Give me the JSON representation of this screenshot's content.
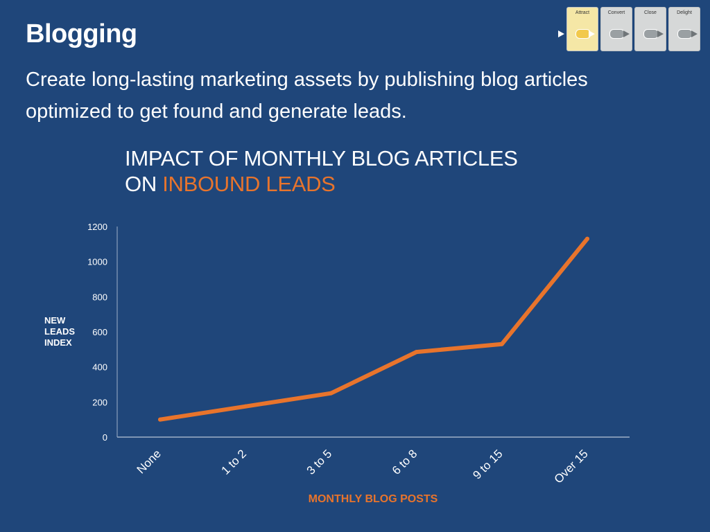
{
  "slide": {
    "title": "Blogging",
    "subtitle": "Create long-lasting marketing assets by publishing blog articles optimized to get found and generate leads."
  },
  "stages": {
    "items": [
      {
        "label": "Attract",
        "active": true
      },
      {
        "label": "Convert",
        "active": false
      },
      {
        "label": "Close",
        "active": false
      },
      {
        "label": "Delight",
        "active": false
      }
    ]
  },
  "chart_data": {
    "type": "line",
    "title_part1": "IMPACT OF MONTHLY BLOG ARTICLES",
    "title_part2_prefix": "ON ",
    "title_part2_highlight": "INBOUND LEADS",
    "xlabel": "MONTHLY BLOG POSTS",
    "ylabel": "NEW LEADS INDEX",
    "categories": [
      "None",
      "1 to 2",
      "3 to 5",
      "6 to 8",
      "9 to 15",
      "Over 15"
    ],
    "series": [
      {
        "values": [
          100,
          175,
          250,
          485,
          530,
          1130
        ]
      }
    ],
    "ylim": [
      0,
      1200
    ],
    "yticks": [
      0,
      200,
      400,
      600,
      800,
      1000,
      1200
    ],
    "grid": false,
    "line_color": "#e8742c",
    "axis_color": "#9fb0c8"
  }
}
